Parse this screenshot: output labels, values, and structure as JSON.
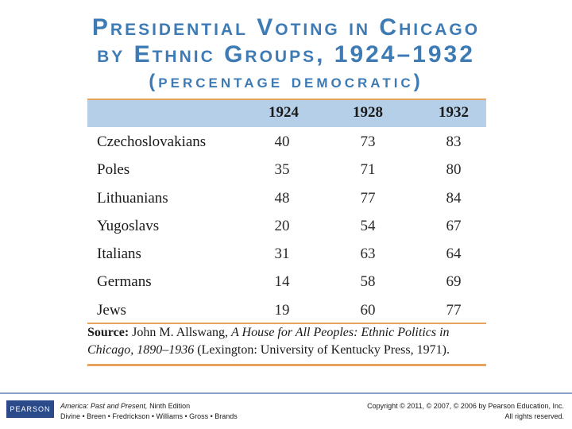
{
  "title": {
    "line1": "Presidential Voting in Chicago",
    "line2": "by Ethnic Groups, 1924–1932",
    "line3": "(percentage democratic)"
  },
  "table": {
    "headers": [
      "1924",
      "1928",
      "1932"
    ],
    "rows": [
      {
        "group": "Czechoslovakians",
        "v1924": "40",
        "v1928": "73",
        "v1932": "83"
      },
      {
        "group": "Poles",
        "v1924": "35",
        "v1928": "71",
        "v1932": "80"
      },
      {
        "group": "Lithuanians",
        "v1924": "48",
        "v1928": "77",
        "v1932": "84"
      },
      {
        "group": "Yugoslavs",
        "v1924": "20",
        "v1928": "54",
        "v1932": "67"
      },
      {
        "group": "Italians",
        "v1924": "31",
        "v1928": "63",
        "v1932": "64"
      },
      {
        "group": "Germans",
        "v1924": "14",
        "v1928": "58",
        "v1932": "69"
      },
      {
        "group": "Jews",
        "v1924": "19",
        "v1928": "60",
        "v1932": "77"
      }
    ]
  },
  "source": {
    "label": "Source:",
    "author": "John M. Allswang,",
    "book": "A House for All Peoples: Ethnic Politics in Chicago, 1890–1936",
    "pub": "(Lexington: University of Kentucky Press, 1971)."
  },
  "footer": {
    "logo": "PEARSON",
    "book_title": "America: Past and Present,",
    "edition": "Ninth Edition",
    "authors": "Divine • Breen • Fredrickson • Williams • Gross • Brands",
    "copyright": "Copyright © 2011, © 2007, © 2006 by Pearson Education, Inc.",
    "rights": "All rights reserved."
  },
  "colors": {
    "title": "#3e7bb5",
    "header_bg": "#b6cfe8",
    "rule": "#e8a35c"
  }
}
